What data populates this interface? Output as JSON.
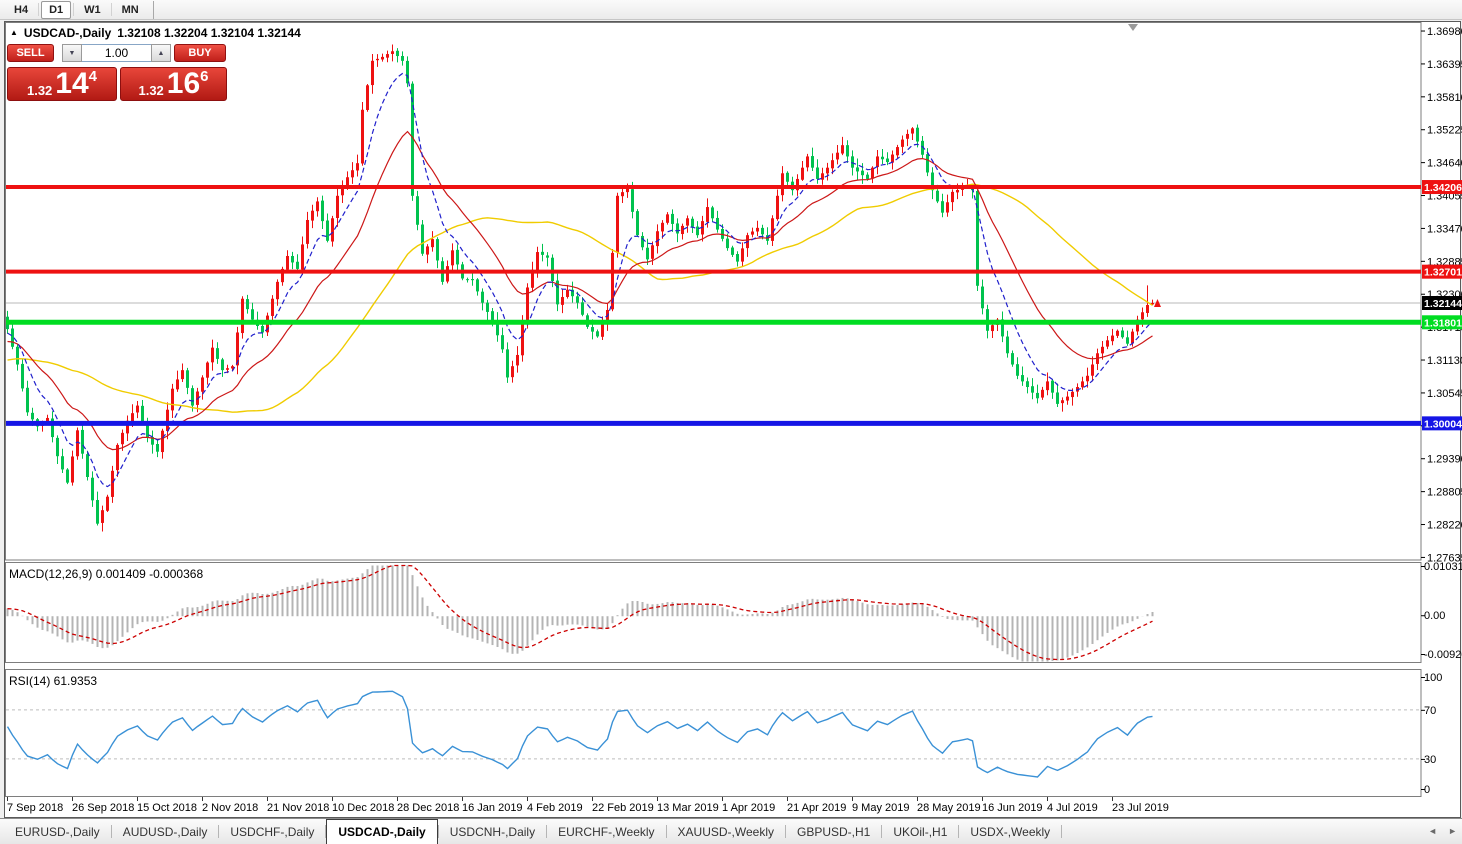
{
  "toolbar": {
    "periods": [
      "H4",
      "D1",
      "W1",
      "MN"
    ],
    "active": "D1"
  },
  "window": {
    "title_arrow": "▲",
    "symbol_title": "USDCAD-,Daily",
    "ohlc_text": "1.32108 1.32204 1.32104 1.32144"
  },
  "trade_panel": {
    "sell_label": "SELL",
    "buy_label": "BUY",
    "volume": "1.00",
    "down_arrow": "▼",
    "up_arrow": "▲",
    "sell_price": {
      "small": "1.32",
      "big": "14",
      "sup": "4"
    },
    "buy_price": {
      "small": "1.32",
      "big": "16",
      "sup": "6"
    }
  },
  "price_axis": {
    "ticks": [
      "1.36980",
      "1.36395",
      "1.35810",
      "1.35225",
      "1.34640",
      "1.34055",
      "1.33470",
      "1.32885",
      "1.32300",
      "1.31715",
      "1.31130",
      "1.30545",
      "1.29960",
      "1.29390",
      "1.28805",
      "1.28220",
      "1.27635"
    ],
    "current_price": "1.32144"
  },
  "levels": [
    {
      "value": "1.34206",
      "price": 1.34206,
      "color": "#ee1111",
      "thickness": 4
    },
    {
      "value": "1.32701",
      "price": 1.32701,
      "color": "#ee1111",
      "thickness": 4
    },
    {
      "value": "1.31801",
      "price": 1.31801,
      "color": "#00dd22",
      "thickness": 5
    },
    {
      "value": "1.30004",
      "price": 1.30004,
      "color": "#1515e6",
      "thickness": 5
    }
  ],
  "macd": {
    "label": "MACD(12,26,9) 0.001409 -0.000368",
    "axis_max": "0.010311",
    "axis_zero": "0.00",
    "axis_min": "-0.009203"
  },
  "rsi": {
    "label": "RSI(14) 61.9353",
    "axis": [
      "100",
      "70",
      "30",
      "0"
    ],
    "dashed_levels": [
      70,
      30
    ]
  },
  "date_axis": {
    "labels": [
      "7 Sep 2018",
      "26 Sep 2018",
      "15 Oct 2018",
      "2 Nov 2018",
      "21 Nov 2018",
      "10 Dec 2018",
      "28 Dec 2018",
      "16 Jan 2019",
      "4 Feb 2019",
      "22 Feb 2019",
      "13 Mar 2019",
      "1 Apr 2019",
      "21 Apr 2019",
      "9 May 2019",
      "28 May 2019",
      "16 Jun 2019",
      "4 Jul 2019",
      "23 Jul 2019"
    ]
  },
  "tabs": {
    "items": [
      "EURUSD-,Daily",
      "AUDUSD-,Daily",
      "USDCHF-,Daily",
      "USDCAD-,Daily",
      "USDCNH-,Daily",
      "EURCHF-,Weekly",
      "XAUUSD-,Weekly",
      "GBPUSD-,H1",
      "UKOil-,H1",
      "USDX-,Weekly"
    ],
    "active": "USDCAD-,Daily",
    "left_arrow": "◄",
    "right_arrow": "►"
  },
  "colors": {
    "up_candle": "#ee1111",
    "down_candle": "#00c24e",
    "ma_fast": "#2020cc",
    "ma_mid": "#cc1818",
    "ma_slow": "#f0cc00",
    "macd_hist": "#b4b4b4",
    "macd_signal": "#cc0000",
    "rsi_line": "#3a91d6",
    "current_price_line": "#b8b8b8",
    "current_price_label_bg": "#000000"
  },
  "chart_data": {
    "type": "candlestick",
    "symbol": "USDCAD",
    "timeframe": "Daily",
    "ohlc_current": {
      "open": 1.32108,
      "high": 1.32204,
      "low": 1.32104,
      "close": 1.32144
    },
    "bars": 230,
    "horizontal_lines": [
      1.34206,
      1.32701,
      1.31801,
      1.30004
    ],
    "indicators": {
      "ma_periods": [
        8,
        21,
        50
      ],
      "macd_params": [
        12,
        26,
        9
      ],
      "macd_value": 0.001409,
      "macd_signal_value": -0.000368,
      "rsi_period": 14,
      "rsi_value": 61.9353
    },
    "close_anchors": [
      [
        0,
        1.3168
      ],
      [
        2,
        1.3105
      ],
      [
        4,
        1.302
      ],
      [
        6,
        1.2995
      ],
      [
        8,
        1.301
      ],
      [
        10,
        1.2942
      ],
      [
        12,
        1.2895
      ],
      [
        14,
        1.2988
      ],
      [
        16,
        1.2905
      ],
      [
        18,
        1.2822
      ],
      [
        20,
        1.287
      ],
      [
        22,
        1.2962
      ],
      [
        24,
        1.3005
      ],
      [
        26,
        1.3032
      ],
      [
        28,
        1.2975
      ],
      [
        30,
        1.295
      ],
      [
        33,
        1.3062
      ],
      [
        35,
        1.3095
      ],
      [
        37,
        1.3032
      ],
      [
        39,
        1.3082
      ],
      [
        41,
        1.3135
      ],
      [
        43,
        1.3095
      ],
      [
        45,
        1.3102
      ],
      [
        47,
        1.3222
      ],
      [
        49,
        1.3185
      ],
      [
        51,
        1.3162
      ],
      [
        54,
        1.3252
      ],
      [
        56,
        1.3298
      ],
      [
        58,
        1.3275
      ],
      [
        60,
        1.3362
      ],
      [
        62,
        1.3395
      ],
      [
        64,
        1.3325
      ],
      [
        66,
        1.3405
      ],
      [
        68,
        1.3438
      ],
      [
        70,
        1.3463
      ],
      [
        71,
        1.3558
      ],
      [
        73,
        1.3645
      ],
      [
        75,
        1.3652
      ],
      [
        77,
        1.3662
      ],
      [
        79,
        1.3645
      ],
      [
        80,
        1.3605
      ],
      [
        81,
        1.3405
      ],
      [
        83,
        1.3302
      ],
      [
        85,
        1.3328
      ],
      [
        87,
        1.3252
      ],
      [
        89,
        1.3308
      ],
      [
        91,
        1.3258
      ],
      [
        93,
        1.3255
      ],
      [
        95,
        1.3215
      ],
      [
        97,
        1.3182
      ],
      [
        99,
        1.3132
      ],
      [
        100,
        1.3082
      ],
      [
        102,
        1.3122
      ],
      [
        104,
        1.3242
      ],
      [
        106,
        1.3305
      ],
      [
        108,
        1.3295
      ],
      [
        110,
        1.3212
      ],
      [
        112,
        1.3238
      ],
      [
        114,
        1.3215
      ],
      [
        116,
        1.3172
      ],
      [
        118,
        1.3155
      ],
      [
        120,
        1.3202
      ],
      [
        122,
        1.3405
      ],
      [
        124,
        1.3418
      ],
      [
        126,
        1.3335
      ],
      [
        128,
        1.3292
      ],
      [
        130,
        1.3342
      ],
      [
        132,
        1.3372
      ],
      [
        134,
        1.3338
      ],
      [
        136,
        1.3365
      ],
      [
        138,
        1.3335
      ],
      [
        140,
        1.3385
      ],
      [
        142,
        1.3345
      ],
      [
        144,
        1.3312
      ],
      [
        146,
        1.3288
      ],
      [
        148,
        1.3335
      ],
      [
        150,
        1.3348
      ],
      [
        152,
        1.3325
      ],
      [
        155,
        1.3445
      ],
      [
        157,
        1.3415
      ],
      [
        160,
        1.3475
      ],
      [
        162,
        1.3435
      ],
      [
        164,
        1.3455
      ],
      [
        167,
        1.3495
      ],
      [
        169,
        1.3455
      ],
      [
        172,
        1.3435
      ],
      [
        174,
        1.3475
      ],
      [
        176,
        1.3465
      ],
      [
        179,
        1.3505
      ],
      [
        181,
        1.3525
      ],
      [
        183,
        1.3478
      ],
      [
        185,
        1.3415
      ],
      [
        187,
        1.3375
      ],
      [
        189,
        1.3412
      ],
      [
        192,
        1.3422
      ],
      [
        193,
        1.3415
      ],
      [
        194,
        1.3245
      ],
      [
        196,
        1.3165
      ],
      [
        198,
        1.3185
      ],
      [
        200,
        1.3125
      ],
      [
        202,
        1.3085
      ],
      [
        204,
        1.3065
      ],
      [
        206,
        1.3045
      ],
      [
        208,
        1.3075
      ],
      [
        210,
        1.3035
      ],
      [
        212,
        1.3048
      ],
      [
        214,
        1.3065
      ],
      [
        216,
        1.3085
      ],
      [
        218,
        1.3125
      ],
      [
        220,
        1.3148
      ],
      [
        222,
        1.3165
      ],
      [
        224,
        1.3142
      ],
      [
        226,
        1.3185
      ],
      [
        228,
        1.32108
      ],
      [
        229,
        1.32144
      ]
    ]
  }
}
